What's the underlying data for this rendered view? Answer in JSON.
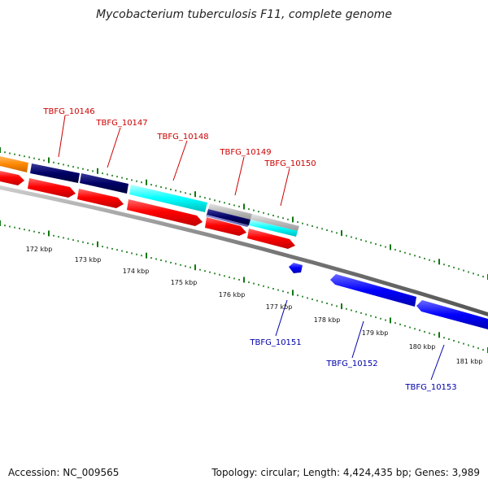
{
  "title": "Mycobacterium tuberculosis F11, complete genome",
  "footer": {
    "accession": "Accession: NC_009565",
    "summary": "Topology: circular; Length: 4,424,435 bp; Genes: 3,989"
  },
  "gene_labels_forward": [
    "TBFG_10146",
    "TBFG_10147",
    "TBFG_10148",
    "TBFG_10149",
    "TBFG_10150"
  ],
  "gene_labels_reverse": [
    "TBFG_10151",
    "TBFG_10152",
    "TBFG_10153"
  ],
  "scale_labels": [
    "172 kbp",
    "173 kbp",
    "174 kbp",
    "175 kbp",
    "176 kbp",
    "177 kbp",
    "178 kbp",
    "179 kbp",
    "180 kbp",
    "181 kbp"
  ],
  "colors": {
    "forward_label": "#cc0000",
    "reverse_label": "#0000aa",
    "cds_red": "#ff0000",
    "navy": "#000066",
    "cyan": "#00ffff",
    "orange": "#ff8800",
    "blue": "#0000ff",
    "grey": "#bbbbbb",
    "backbone": "#888888",
    "tick": "#117711"
  }
}
